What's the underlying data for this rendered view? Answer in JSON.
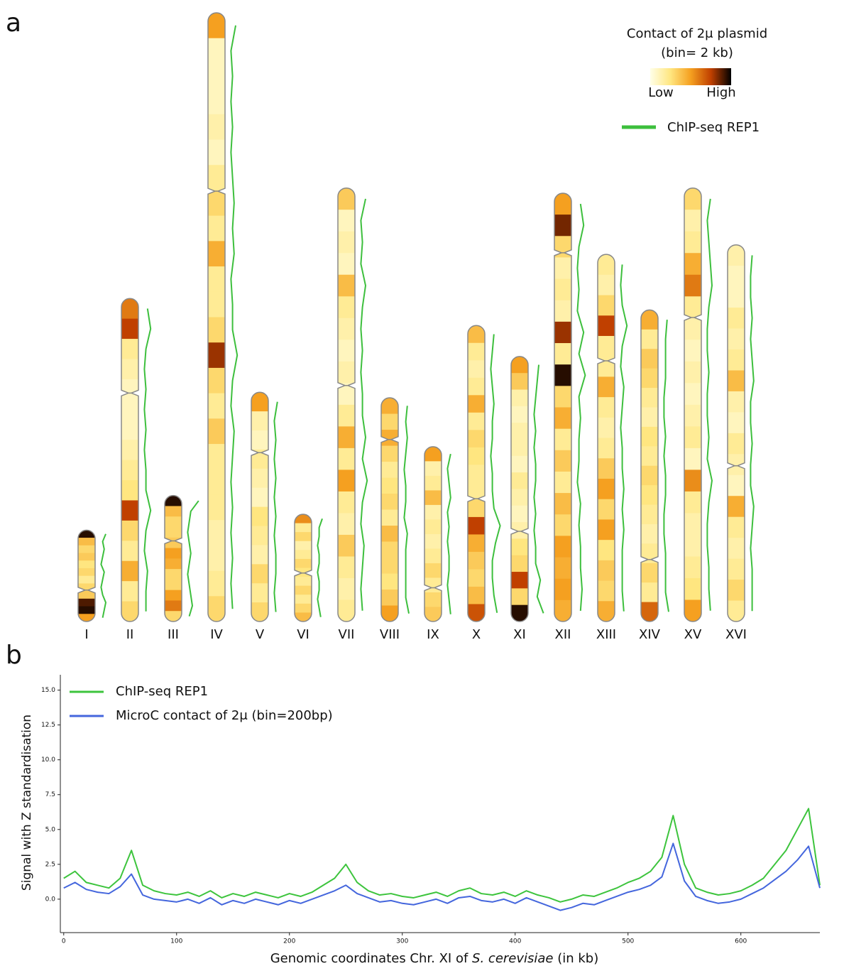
{
  "chart_data": [
    {
      "type": "ideogram",
      "panel": "a",
      "colorbar_title": [
        "Contact of 2μ plasmid",
        "(bin= 2 kb)"
      ],
      "colorbar_labels": [
        "Low",
        "High"
      ],
      "colormap": [
        "#ffffe8",
        "#ffe680",
        "#f5a020",
        "#c04000",
        "#000000"
      ],
      "chip_legend": "ChIP-seq REP1",
      "chip_color": "#3dbf3d",
      "chromosomes": [
        {
          "name": "I",
          "length": 230,
          "centromere": 151,
          "contact": [
            0.95,
            0.4,
            0.3,
            0.35,
            0.25,
            0.3,
            0.2,
            0.3,
            0.35,
            0.9,
            0.95,
            0.5
          ],
          "chip": [
            0.5,
            0.3,
            0.4,
            0.3,
            0.2,
            0.4,
            0.3,
            0.2,
            0.3,
            0.5,
            0.4,
            0.3
          ]
        },
        {
          "name": "II",
          "length": 813,
          "centromere": 238,
          "contact": [
            0.6,
            0.75,
            0.2,
            0.15,
            0.1,
            0.1,
            0.1,
            0.15,
            0.2,
            0.25,
            0.75,
            0.3,
            0.2,
            0.45,
            0.2,
            0.3
          ],
          "chip": [
            0.4,
            0.6,
            0.3,
            0.2,
            0.3,
            0.2,
            0.3,
            0.2,
            0.3,
            0.3,
            0.6,
            0.3,
            0.2,
            0.4,
            0.3,
            0.3
          ]
        },
        {
          "name": "III",
          "length": 317,
          "centromere": 114,
          "contact": [
            0.95,
            0.4,
            0.3,
            0.3,
            0.35,
            0.5,
            0.45,
            0.3,
            0.3,
            0.5,
            0.6,
            0.3
          ],
          "chip": [
            0.9,
            0.4,
            0.3,
            0.2,
            0.3,
            0.4,
            0.3,
            0.2,
            0.3,
            0.4,
            0.5,
            0.3
          ]
        },
        {
          "name": "IV",
          "length": 1532,
          "centromere": 449,
          "contact": [
            0.5,
            0.1,
            0.1,
            0.1,
            0.15,
            0.1,
            0.2,
            0.3,
            0.2,
            0.45,
            0.2,
            0.2,
            0.3,
            0.8,
            0.3,
            0.2,
            0.35,
            0.2,
            0.2,
            0.2,
            0.15,
            0.15,
            0.2,
            0.3
          ],
          "chip": [
            0.5,
            0.2,
            0.3,
            0.2,
            0.3,
            0.2,
            0.3,
            0.4,
            0.3,
            0.4,
            0.2,
            0.3,
            0.3,
            0.6,
            0.3,
            0.2,
            0.4,
            0.3,
            0.2,
            0.3,
            0.2,
            0.3,
            0.2,
            0.3
          ]
        },
        {
          "name": "V",
          "length": 577,
          "centromere": 152,
          "contact": [
            0.5,
            0.15,
            0.1,
            0.2,
            0.15,
            0.1,
            0.25,
            0.2,
            0.15,
            0.3,
            0.2,
            0.3
          ],
          "chip": [
            0.4,
            0.2,
            0.3,
            0.2,
            0.3,
            0.2,
            0.3,
            0.2,
            0.3,
            0.3,
            0.2,
            0.3
          ]
        },
        {
          "name": "VI",
          "length": 270,
          "centromere": 148,
          "contact": [
            0.55,
            0.2,
            0.3,
            0.15,
            0.2,
            0.3,
            0.25,
            0.2,
            0.3,
            0.2,
            0.3,
            0.4
          ],
          "chip": [
            0.5,
            0.3,
            0.3,
            0.2,
            0.3,
            0.3,
            0.2,
            0.3,
            0.3,
            0.2,
            0.3,
            0.4
          ]
        },
        {
          "name": "VII",
          "length": 1091,
          "centromere": 497,
          "contact": [
            0.35,
            0.1,
            0.15,
            0.1,
            0.4,
            0.2,
            0.15,
            0.1,
            0.15,
            0.1,
            0.2,
            0.45,
            0.2,
            0.5,
            0.2,
            0.15,
            0.35,
            0.2,
            0.15,
            0.2
          ],
          "chip": [
            0.5,
            0.2,
            0.3,
            0.2,
            0.5,
            0.3,
            0.2,
            0.3,
            0.2,
            0.3,
            0.3,
            0.5,
            0.3,
            0.6,
            0.3,
            0.2,
            0.4,
            0.3,
            0.2,
            0.3
          ]
        },
        {
          "name": "VIII",
          "length": 563,
          "centromere": 105,
          "contact": [
            0.45,
            0.3,
            0.45,
            0.3,
            0.2,
            0.25,
            0.3,
            0.2,
            0.4,
            0.3,
            0.3,
            0.25,
            0.35,
            0.5
          ],
          "chip": [
            0.4,
            0.3,
            0.4,
            0.3,
            0.2,
            0.3,
            0.3,
            0.2,
            0.4,
            0.3,
            0.3,
            0.3,
            0.3,
            0.5
          ]
        },
        {
          "name": "IX",
          "length": 440,
          "centromere": 355,
          "contact": [
            0.5,
            0.15,
            0.2,
            0.4,
            0.15,
            0.2,
            0.15,
            0.2,
            0.3,
            0.2,
            0.3,
            0.35
          ],
          "chip": [
            0.4,
            0.2,
            0.3,
            0.4,
            0.2,
            0.3,
            0.2,
            0.3,
            0.3,
            0.2,
            0.3,
            0.4
          ]
        },
        {
          "name": "X",
          "length": 745,
          "centromere": 436,
          "contact": [
            0.4,
            0.2,
            0.15,
            0.2,
            0.45,
            0.2,
            0.3,
            0.25,
            0.2,
            0.2,
            0.3,
            0.75,
            0.45,
            0.35,
            0.3,
            0.4,
            0.7
          ],
          "chip": [
            0.4,
            0.3,
            0.2,
            0.3,
            0.4,
            0.3,
            0.3,
            0.2,
            0.3,
            0.3,
            0.4,
            0.8,
            0.5,
            0.3,
            0.3,
            0.4,
            0.6
          ]
        },
        {
          "name": "XI",
          "length": 667,
          "centromere": 440,
          "contact": [
            0.5,
            0.35,
            0.15,
            0.1,
            0.15,
            0.15,
            0.1,
            0.2,
            0.15,
            0.1,
            0.15,
            0.25,
            0.3,
            0.75,
            0.3,
            0.95
          ],
          "chip": [
            0.5,
            0.4,
            0.3,
            0.2,
            0.3,
            0.2,
            0.3,
            0.3,
            0.2,
            0.3,
            0.2,
            0.3,
            0.3,
            0.6,
            0.4,
            0.8
          ]
        },
        {
          "name": "XII",
          "length": 1078,
          "centromere": 150,
          "contact": [
            0.5,
            0.85,
            0.3,
            0.15,
            0.2,
            0.15,
            0.8,
            0.2,
            0.95,
            0.3,
            0.45,
            0.2,
            0.35,
            0.2,
            0.4,
            0.3,
            0.5,
            0.45,
            0.5,
            0.45
          ],
          "chip": [
            0.4,
            0.6,
            0.3,
            0.2,
            0.3,
            0.2,
            0.6,
            0.3,
            0.7,
            0.3,
            0.4,
            0.3,
            0.3,
            0.2,
            0.4,
            0.3,
            0.4,
            0.4,
            0.5,
            0.4
          ]
        },
        {
          "name": "XIII",
          "length": 924,
          "centromere": 268,
          "contact": [
            0.2,
            0.15,
            0.3,
            0.75,
            0.2,
            0.2,
            0.45,
            0.2,
            0.15,
            0.2,
            0.35,
            0.5,
            0.3,
            0.5,
            0.25,
            0.35,
            0.3,
            0.45
          ],
          "chip": [
            0.3,
            0.2,
            0.3,
            0.6,
            0.3,
            0.2,
            0.4,
            0.3,
            0.2,
            0.3,
            0.3,
            0.4,
            0.3,
            0.4,
            0.3,
            0.3,
            0.3,
            0.4
          ]
        },
        {
          "name": "XIV",
          "length": 784,
          "centromere": 628,
          "contact": [
            0.45,
            0.2,
            0.35,
            0.3,
            0.2,
            0.15,
            0.25,
            0.2,
            0.3,
            0.25,
            0.2,
            0.15,
            0.2,
            0.3,
            0.2,
            0.65
          ],
          "chip": [
            0.4,
            0.3,
            0.3,
            0.3,
            0.2,
            0.2,
            0.3,
            0.2,
            0.3,
            0.3,
            0.2,
            0.2,
            0.3,
            0.3,
            0.3,
            0.5
          ]
        },
        {
          "name": "XV",
          "length": 1091,
          "centromere": 326,
          "contact": [
            0.3,
            0.15,
            0.2,
            0.45,
            0.6,
            0.2,
            0.15,
            0.1,
            0.15,
            0.1,
            0.15,
            0.2,
            0.1,
            0.55,
            0.2,
            0.15,
            0.15,
            0.2,
            0.25,
            0.5
          ],
          "chip": [
            0.4,
            0.2,
            0.3,
            0.4,
            0.5,
            0.3,
            0.2,
            0.2,
            0.3,
            0.2,
            0.2,
            0.3,
            0.2,
            0.5,
            0.3,
            0.2,
            0.2,
            0.3,
            0.3,
            0.4
          ]
        },
        {
          "name": "XVI",
          "length": 948,
          "centromere": 556,
          "contact": [
            0.15,
            0.1,
            0.1,
            0.2,
            0.15,
            0.2,
            0.4,
            0.15,
            0.1,
            0.2,
            0.15,
            0.1,
            0.45,
            0.2,
            0.15,
            0.2,
            0.3,
            0.2
          ],
          "chip": [
            0.3,
            0.2,
            0.2,
            0.3,
            0.2,
            0.3,
            0.4,
            0.2,
            0.2,
            0.3,
            0.2,
            0.2,
            0.4,
            0.3,
            0.2,
            0.3,
            0.3,
            0.3
          ]
        }
      ]
    },
    {
      "type": "line",
      "panel": "b",
      "y_label": "Signal with Z standardisation",
      "x_label": [
        "Genomic coordinates Chr. XI of ",
        "S. cerevisiae",
        " (in kb)"
      ],
      "xlim": [
        -3,
        670
      ],
      "ylim": [
        -2.4,
        16.1
      ],
      "xticks": [
        0,
        100,
        200,
        300,
        400,
        500,
        600
      ],
      "yticks": [
        {
          "value": 0,
          "label": "0.0"
        },
        2.5,
        {
          "value": 5,
          "label": "5.0"
        },
        7.5,
        {
          "value": 10,
          "label": "10.0"
        },
        12.5,
        {
          "value": 15,
          "label": "15.0"
        }
      ],
      "x": [
        0,
        10,
        20,
        30,
        40,
        50,
        60,
        70,
        80,
        90,
        100,
        110,
        120,
        130,
        140,
        150,
        160,
        170,
        180,
        190,
        200,
        210,
        220,
        230,
        240,
        250,
        260,
        270,
        280,
        290,
        300,
        310,
        320,
        330,
        340,
        350,
        360,
        370,
        380,
        390,
        400,
        410,
        420,
        430,
        440,
        450,
        460,
        470,
        480,
        490,
        500,
        510,
        520,
        530,
        540,
        550,
        560,
        570,
        580,
        590,
        600,
        610,
        620,
        630,
        640,
        650,
        660,
        670
      ],
      "series": [
        {
          "name": "ChIP-seq REP1",
          "color": "#3dc43d",
          "values": [
            1.5,
            2.0,
            1.2,
            1.0,
            0.8,
            1.5,
            3.5,
            1.0,
            0.6,
            0.4,
            0.3,
            0.5,
            0.2,
            0.6,
            0.1,
            0.4,
            0.2,
            0.5,
            0.3,
            0.1,
            0.4,
            0.2,
            0.5,
            1.0,
            1.5,
            2.5,
            1.2,
            0.6,
            0.3,
            0.4,
            0.2,
            0.1,
            0.3,
            0.5,
            0.2,
            0.6,
            0.8,
            0.4,
            0.3,
            0.5,
            0.2,
            0.6,
            0.3,
            0.1,
            -0.2,
            0.0,
            0.3,
            0.2,
            0.5,
            0.8,
            1.2,
            1.5,
            2.0,
            3.0,
            6.0,
            2.5,
            0.8,
            0.5,
            0.3,
            0.4,
            0.6,
            1.0,
            1.5,
            2.5,
            3.5,
            5.0,
            6.5,
            1.0
          ]
        },
        {
          "name": "MicroC contact of 2μ (bin=200bp)",
          "color": "#4466dd",
          "values": [
            0.8,
            1.2,
            0.7,
            0.5,
            0.4,
            0.9,
            1.8,
            0.3,
            0.0,
            -0.1,
            -0.2,
            0.0,
            -0.3,
            0.1,
            -0.4,
            -0.1,
            -0.3,
            0.0,
            -0.2,
            -0.4,
            -0.1,
            -0.3,
            0.0,
            0.3,
            0.6,
            1.0,
            0.4,
            0.1,
            -0.2,
            -0.1,
            -0.3,
            -0.4,
            -0.2,
            0.0,
            -0.3,
            0.1,
            0.2,
            -0.1,
            -0.2,
            0.0,
            -0.3,
            0.1,
            -0.2,
            -0.5,
            -0.8,
            -0.6,
            -0.3,
            -0.4,
            -0.1,
            0.2,
            0.5,
            0.7,
            1.0,
            1.6,
            4.0,
            1.3,
            0.2,
            -0.1,
            -0.3,
            -0.2,
            0.0,
            0.4,
            0.8,
            1.4,
            2.0,
            2.8,
            3.8,
            0.8
          ]
        }
      ]
    }
  ]
}
